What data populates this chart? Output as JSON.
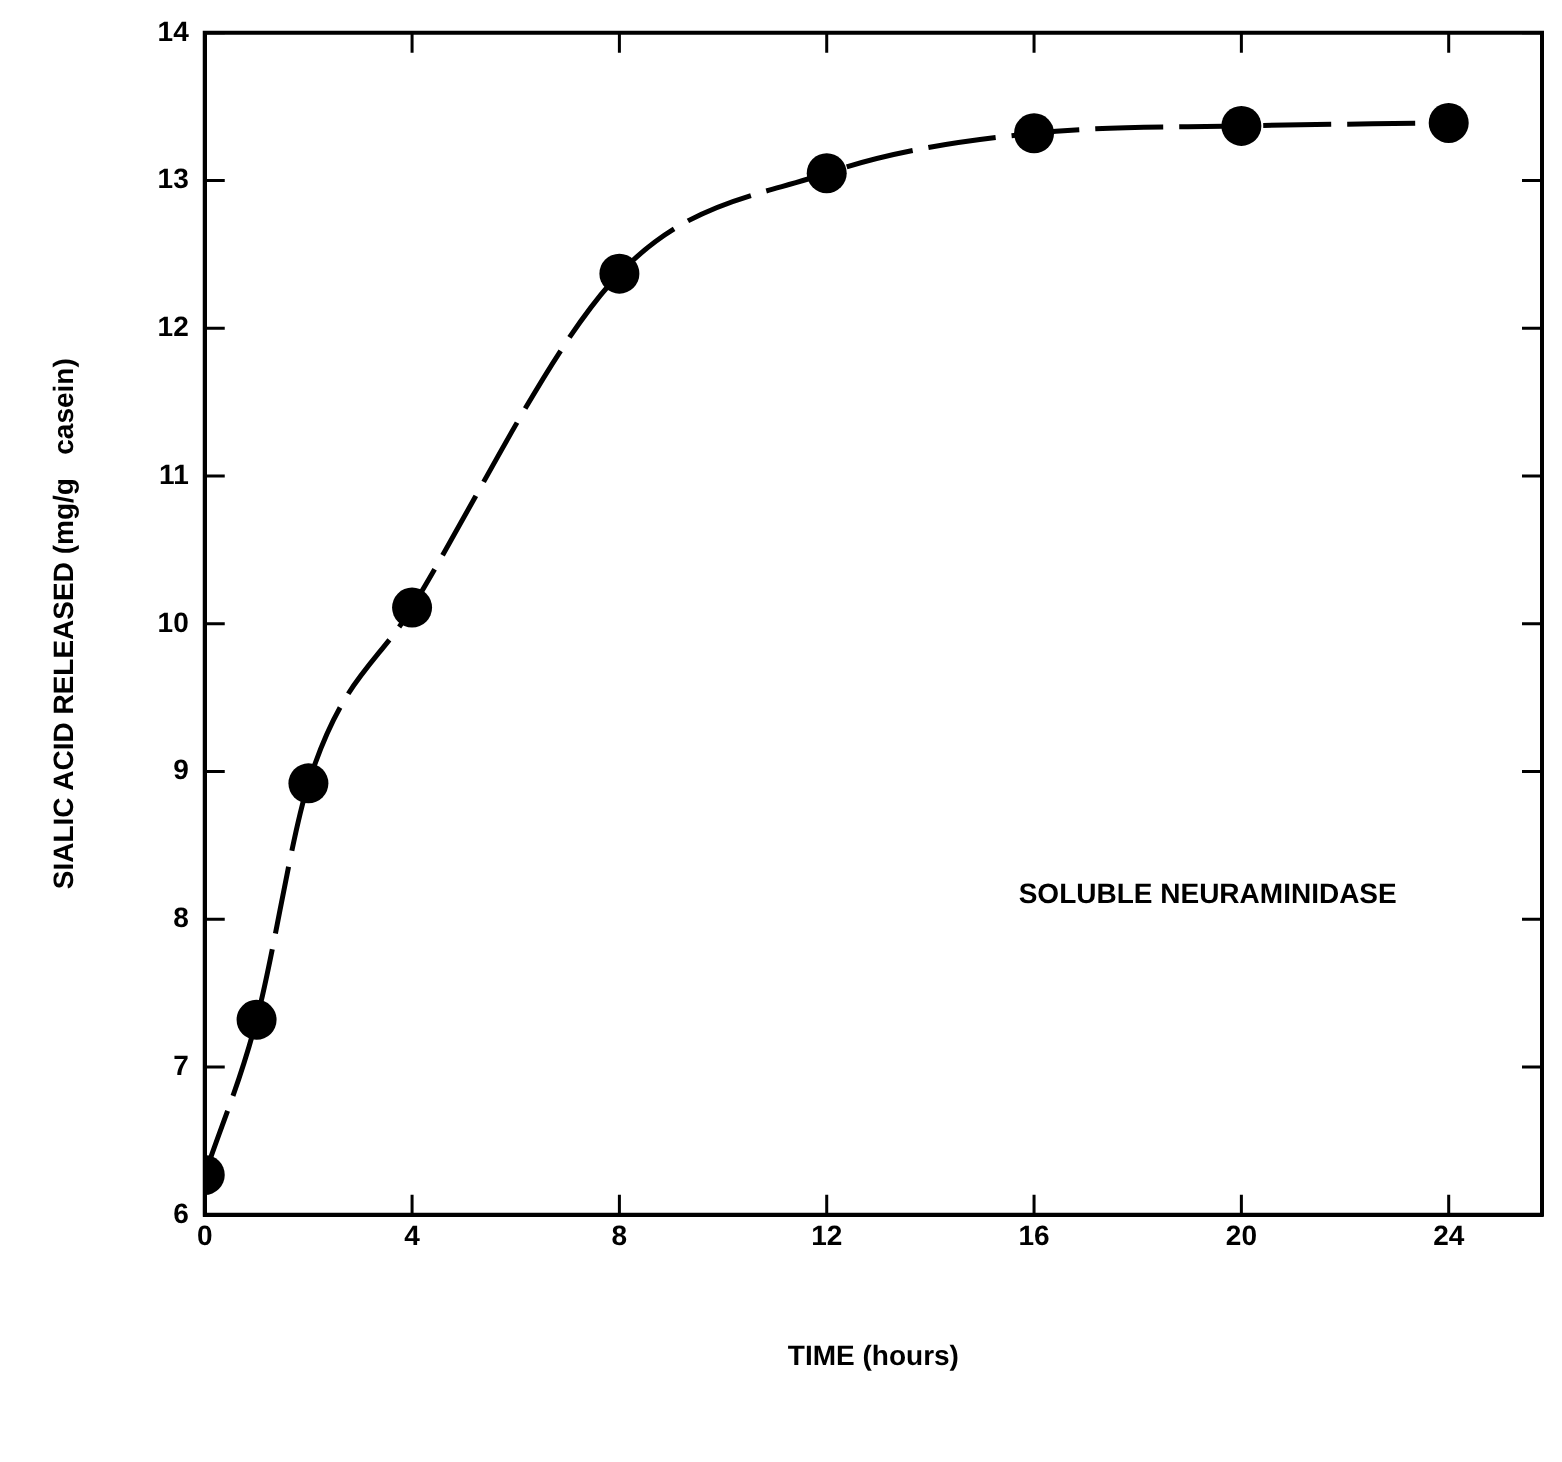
{
  "chart_data": {
    "type": "line",
    "xlabel": "TIME (hours)",
    "ylabel": "SIALIC ACID RELEASED (mg/g   casein)",
    "x": [
      0,
      1,
      2,
      4,
      8,
      12,
      16,
      20,
      24
    ],
    "series": [
      {
        "color": "#000000",
        "values": [
          6.27,
          7.32,
          8.92,
          10.11,
          12.37,
          13.05,
          13.32,
          13.37,
          13.39
        ]
      }
    ],
    "xlim": [
      0,
      25.8
    ],
    "xticks": [
      0,
      4,
      8,
      12,
      16,
      20,
      24
    ],
    "ylim": [
      6,
      14
    ],
    "yticks": [
      6,
      7,
      8,
      9,
      10,
      11,
      12,
      13,
      14
    ],
    "marker": "circle",
    "line_style": "dashed",
    "annotations": [
      "SOLUBLE NEURAMINIDASE"
    ]
  }
}
